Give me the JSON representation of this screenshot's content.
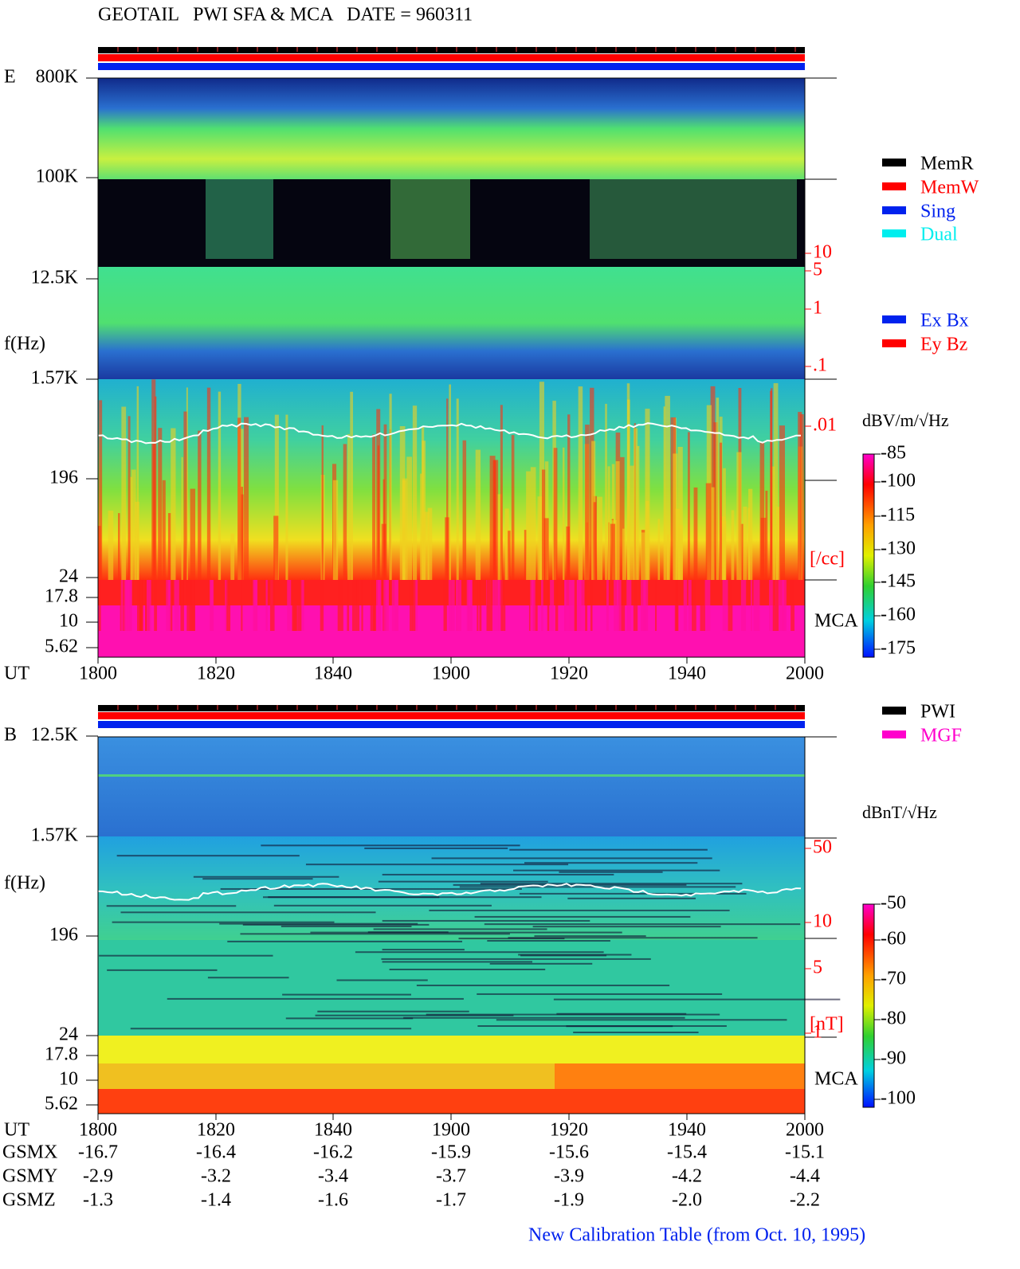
{
  "title": "GEOTAIL   PWI SFA & MCA   DATE = 960311",
  "panel_e": {
    "label": "E",
    "y_axis_title": "f(Hz)",
    "freq_labels": [
      "800K",
      "100K",
      "12.5K",
      "1.57K",
      "196",
      "24",
      "17.8",
      "10",
      "5.62"
    ],
    "x_axis_title": "UT",
    "time_labels": [
      "1800",
      "1820",
      "1840",
      "1900",
      "1920",
      "1940",
      "2000"
    ],
    "density_labels": [
      "10",
      "5",
      "1",
      ".1",
      ".01"
    ],
    "density_unit": "[/cc]",
    "mca_label": "MCA",
    "colorbar_title": "dBV/m/√Hz",
    "colorbar_labels": [
      "-85",
      "-100",
      "-115",
      "-130",
      "-145",
      "-160",
      "-175"
    ]
  },
  "panel_b": {
    "label": "B",
    "y_axis_title": "f(Hz)",
    "freq_labels": [
      "12.5K",
      "1.57K",
      "196",
      "24",
      "17.8",
      "10",
      "5.62"
    ],
    "x_axis_title": "UT",
    "time_labels": [
      "1800",
      "1820",
      "1840",
      "1900",
      "1920",
      "1940",
      "2000"
    ],
    "density_labels": [
      "50",
      "10",
      "5",
      "1"
    ],
    "density_unit": "[nT]",
    "mca_label": "MCA",
    "colorbar_title": "dBnT/√Hz",
    "colorbar_labels": [
      "-50",
      "-60",
      "-70",
      "-80",
      "-90",
      "-100"
    ]
  },
  "legend_mode": [
    {
      "label": "MemR",
      "color": "#000000"
    },
    {
      "label": "MemW",
      "color": "#ff0000"
    },
    {
      "label": "Sing",
      "color": "#0022ee"
    },
    {
      "label": "Dual",
      "color": "#00eeee"
    }
  ],
  "legend_antenna": [
    {
      "label": "Ex Bx",
      "color": "#0022ee"
    },
    {
      "label": "Ey Bz",
      "color": "#ff0000"
    }
  ],
  "legend_source": [
    {
      "label": "PWI",
      "color": "#000000"
    },
    {
      "label": "MGF",
      "color": "#ff00cc"
    }
  ],
  "position": {
    "rows": [
      {
        "name": "GSMX",
        "values": [
          "-16.7",
          "-16.4",
          "-16.2",
          "-15.9",
          "-15.6",
          "-15.4",
          "-15.1"
        ]
      },
      {
        "name": "GSMY",
        "values": [
          "-2.9",
          "-3.2",
          "-3.4",
          "-3.7",
          "-3.9",
          "-4.2",
          "-4.4"
        ]
      },
      {
        "name": "GSMZ",
        "values": [
          "-1.3",
          "-1.4",
          "-1.6",
          "-1.7",
          "-1.9",
          "-2.0",
          "-2.2"
        ]
      }
    ]
  },
  "footer": "New Calibration Table (from Oct. 10, 1995)"
}
